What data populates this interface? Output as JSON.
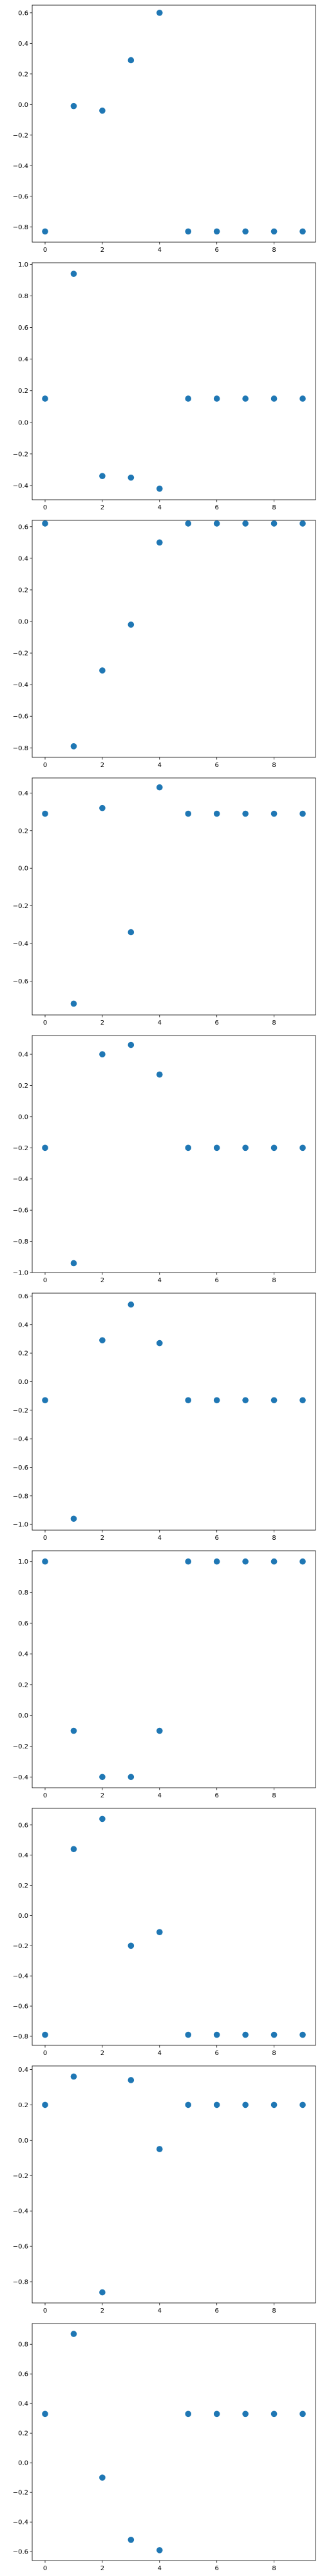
{
  "chart_data": [
    {
      "type": "scatter",
      "x": [
        0,
        1,
        2,
        3,
        4,
        5,
        6,
        7,
        8,
        9
      ],
      "y": [
        -0.83,
        -0.01,
        -0.04,
        0.29,
        0.6,
        -0.83,
        -0.83,
        -0.83,
        -0.83,
        -0.83
      ],
      "ylim": [
        -0.9,
        0.65
      ],
      "yticks": [
        -0.8,
        -0.6,
        -0.4,
        -0.2,
        0.0,
        0.2,
        0.4,
        0.6
      ],
      "xticks": [
        0,
        2,
        4,
        6,
        8
      ],
      "xlim": [
        -0.45,
        9.45
      ],
      "color": "#1f77b4",
      "grid": false
    },
    {
      "type": "scatter",
      "x": [
        0,
        1,
        2,
        3,
        4,
        5,
        6,
        7,
        8,
        9
      ],
      "y": [
        0.15,
        0.94,
        -0.34,
        -0.35,
        -0.42,
        0.15,
        0.15,
        0.15,
        0.15,
        0.15
      ],
      "ylim": [
        -0.49,
        1.01
      ],
      "yticks": [
        -0.4,
        -0.2,
        0.0,
        0.2,
        0.4,
        0.6,
        0.8,
        1.0
      ],
      "xticks": [
        0,
        2,
        4,
        6,
        8
      ],
      "xlim": [
        -0.45,
        9.45
      ],
      "color": "#1f77b4",
      "grid": false
    },
    {
      "type": "scatter",
      "x": [
        0,
        1,
        2,
        3,
        4,
        5,
        6,
        7,
        8,
        9
      ],
      "y": [
        0.62,
        -0.79,
        -0.31,
        -0.02,
        0.5,
        0.62,
        0.62,
        0.62,
        0.62,
        0.62
      ],
      "ylim": [
        -0.86,
        0.64
      ],
      "yticks": [
        -0.8,
        -0.6,
        -0.4,
        -0.2,
        0.0,
        0.2,
        0.4,
        0.6
      ],
      "xticks": [
        0,
        2,
        4,
        6,
        8
      ],
      "xlim": [
        -0.45,
        9.45
      ],
      "color": "#1f77b4",
      "grid": false
    },
    {
      "type": "scatter",
      "x": [
        0,
        1,
        2,
        3,
        4,
        5,
        6,
        7,
        8,
        9
      ],
      "y": [
        0.29,
        -0.72,
        0.32,
        -0.34,
        0.43,
        0.29,
        0.29,
        0.29,
        0.29,
        0.29
      ],
      "ylim": [
        -0.78,
        0.48
      ],
      "yticks": [
        -0.6,
        -0.4,
        -0.2,
        0.0,
        0.2,
        0.4
      ],
      "xticks": [
        0,
        2,
        4,
        6,
        8
      ],
      "xlim": [
        -0.45,
        9.45
      ],
      "color": "#1f77b4",
      "grid": false
    },
    {
      "type": "scatter",
      "x": [
        0,
        1,
        2,
        3,
        4,
        5,
        6,
        7,
        8,
        9
      ],
      "y": [
        -0.2,
        -0.94,
        0.4,
        0.46,
        0.27,
        -0.2,
        -0.2,
        -0.2,
        -0.2,
        -0.2
      ],
      "ylim": [
        -1.0,
        0.52
      ],
      "yticks": [
        -1.0,
        -0.8,
        -0.6,
        -0.4,
        -0.2,
        0.0,
        0.2,
        0.4
      ],
      "xticks": [
        0,
        2,
        4,
        6,
        8
      ],
      "xlim": [
        -0.45,
        9.45
      ],
      "color": "#1f77b4",
      "grid": false
    },
    {
      "type": "scatter",
      "x": [
        0,
        1,
        2,
        3,
        4,
        5,
        6,
        7,
        8,
        9
      ],
      "y": [
        -0.13,
        -0.96,
        0.29,
        0.54,
        0.27,
        -0.13,
        -0.13,
        -0.13,
        -0.13,
        -0.13
      ],
      "ylim": [
        -1.04,
        0.62
      ],
      "yticks": [
        -1.0,
        -0.8,
        -0.6,
        -0.4,
        -0.2,
        0.0,
        0.2,
        0.4,
        0.6
      ],
      "xticks": [
        0,
        2,
        4,
        6,
        8
      ],
      "xlim": [
        -0.45,
        9.45
      ],
      "color": "#1f77b4",
      "grid": false
    },
    {
      "type": "scatter",
      "x": [
        0,
        1,
        2,
        3,
        4,
        5,
        6,
        7,
        8,
        9
      ],
      "y": [
        1.0,
        -0.1,
        -0.4,
        -0.4,
        -0.1,
        1.0,
        1.0,
        1.0,
        1.0,
        1.0
      ],
      "ylim": [
        -0.47,
        1.07
      ],
      "yticks": [
        -0.4,
        -0.2,
        0.0,
        0.2,
        0.4,
        0.6,
        0.8,
        1.0
      ],
      "xticks": [
        0,
        2,
        4,
        6,
        8
      ],
      "xlim": [
        -0.45,
        9.45
      ],
      "color": "#1f77b4",
      "grid": false
    },
    {
      "type": "scatter",
      "x": [
        0,
        1,
        2,
        3,
        4,
        5,
        6,
        7,
        8,
        9
      ],
      "y": [
        -0.79,
        0.44,
        0.64,
        -0.2,
        -0.11,
        -0.79,
        -0.79,
        -0.79,
        -0.79,
        -0.79
      ],
      "ylim": [
        -0.86,
        0.71
      ],
      "yticks": [
        -0.8,
        -0.6,
        -0.4,
        -0.2,
        0.0,
        0.2,
        0.4,
        0.6
      ],
      "xticks": [
        0,
        2,
        4,
        6,
        8
      ],
      "xlim": [
        -0.45,
        9.45
      ],
      "color": "#1f77b4",
      "grid": false
    },
    {
      "type": "scatter",
      "x": [
        0,
        1,
        2,
        3,
        4,
        5,
        6,
        7,
        8,
        9
      ],
      "y": [
        0.2,
        0.36,
        -0.86,
        0.34,
        -0.05,
        0.2,
        0.2,
        0.2,
        0.2,
        0.2
      ],
      "ylim": [
        -0.92,
        0.42
      ],
      "yticks": [
        -0.8,
        -0.6,
        -0.4,
        -0.2,
        0.0,
        0.2,
        0.4
      ],
      "xticks": [
        0,
        2,
        4,
        6,
        8
      ],
      "xlim": [
        -0.45,
        9.45
      ],
      "color": "#1f77b4",
      "grid": false
    },
    {
      "type": "scatter",
      "x": [
        0,
        1,
        2,
        3,
        4,
        5,
        6,
        7,
        8,
        9
      ],
      "y": [
        0.33,
        0.87,
        -0.1,
        -0.52,
        -0.59,
        0.33,
        0.33,
        0.33,
        0.33,
        0.33
      ],
      "ylim": [
        -0.66,
        0.94
      ],
      "yticks": [
        -0.6,
        -0.4,
        -0.2,
        0.0,
        0.2,
        0.4,
        0.6,
        0.8
      ],
      "xticks": [
        0,
        2,
        4,
        6,
        8
      ],
      "xlim": [
        -0.45,
        9.45
      ],
      "color": "#1f77b4",
      "grid": false
    }
  ]
}
